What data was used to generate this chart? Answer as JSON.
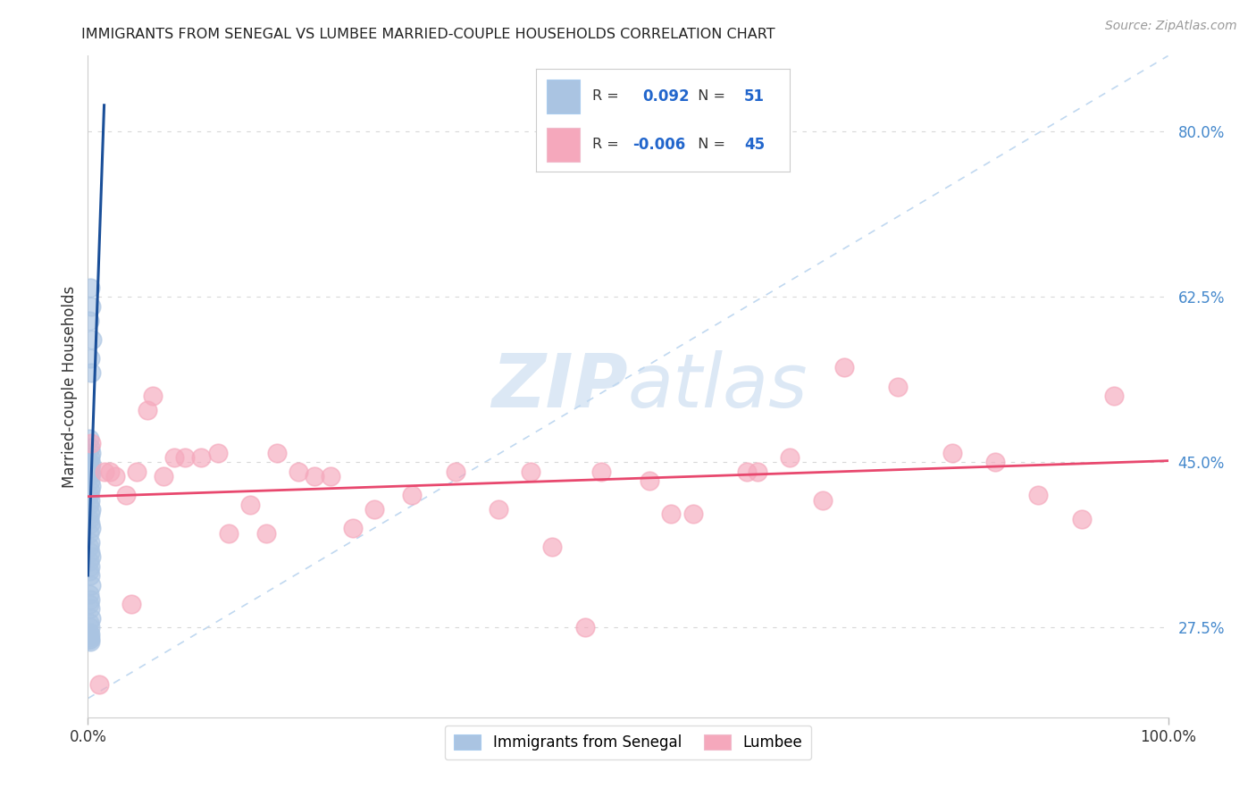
{
  "title": "IMMIGRANTS FROM SENEGAL VS LUMBEE MARRIED-COUPLE HOUSEHOLDS CORRELATION CHART",
  "source": "Source: ZipAtlas.com",
  "ylabel_label": "Married-couple Households",
  "legend1_label": "Immigrants from Senegal",
  "legend2_label": "Lumbee",
  "r1": 0.092,
  "n1": 51,
  "r2": -0.006,
  "n2": 45,
  "blue_color": "#aac4e2",
  "pink_color": "#f5a8bc",
  "blue_line_color": "#1a4f99",
  "pink_line_color": "#e8486e",
  "dashed_line_color": "#c0d8f0",
  "watermark_color": "#dce8f5",
  "xlim": [
    0.0,
    1.0
  ],
  "ylim": [
    0.18,
    0.88
  ],
  "yticks": [
    0.275,
    0.45,
    0.625,
    0.8
  ],
  "ytick_labels": [
    "27.5%",
    "45.0%",
    "62.5%",
    "80.0%"
  ],
  "blue_x": [
    0.002,
    0.003,
    0.001,
    0.004,
    0.002,
    0.003,
    0.001,
    0.002,
    0.003,
    0.002,
    0.001,
    0.003,
    0.002,
    0.001,
    0.002,
    0.003,
    0.001,
    0.002,
    0.003,
    0.002,
    0.001,
    0.002,
    0.001,
    0.003,
    0.002,
    0.001,
    0.002,
    0.003,
    0.001,
    0.002,
    0.001,
    0.002,
    0.003,
    0.001,
    0.002,
    0.001,
    0.002,
    0.003,
    0.001,
    0.002,
    0.001,
    0.002,
    0.003,
    0.001,
    0.002,
    0.001,
    0.002,
    0.001,
    0.002,
    0.001,
    0.002
  ],
  "blue_y": [
    0.635,
    0.615,
    0.6,
    0.58,
    0.56,
    0.545,
    0.475,
    0.465,
    0.46,
    0.455,
    0.45,
    0.448,
    0.445,
    0.442,
    0.44,
    0.438,
    0.435,
    0.43,
    0.425,
    0.42,
    0.415,
    0.41,
    0.405,
    0.4,
    0.395,
    0.39,
    0.385,
    0.38,
    0.375,
    0.365,
    0.36,
    0.355,
    0.35,
    0.345,
    0.34,
    0.335,
    0.33,
    0.32,
    0.31,
    0.305,
    0.3,
    0.295,
    0.285,
    0.28,
    0.275,
    0.27,
    0.268,
    0.265,
    0.263,
    0.262,
    0.26
  ],
  "pink_x": [
    0.003,
    0.06,
    0.09,
    0.12,
    0.15,
    0.175,
    0.21,
    0.245,
    0.3,
    0.34,
    0.38,
    0.43,
    0.475,
    0.52,
    0.56,
    0.61,
    0.65,
    0.7,
    0.75,
    0.8,
    0.84,
    0.88,
    0.92,
    0.95,
    0.055,
    0.08,
    0.105,
    0.165,
    0.225,
    0.265,
    0.035,
    0.13,
    0.195,
    0.41,
    0.46,
    0.54,
    0.62,
    0.68,
    0.04,
    0.015,
    0.02,
    0.025,
    0.045,
    0.07,
    0.01
  ],
  "pink_y": [
    0.47,
    0.52,
    0.455,
    0.46,
    0.405,
    0.46,
    0.435,
    0.38,
    0.415,
    0.44,
    0.4,
    0.36,
    0.44,
    0.43,
    0.395,
    0.44,
    0.455,
    0.55,
    0.53,
    0.46,
    0.45,
    0.415,
    0.39,
    0.52,
    0.505,
    0.455,
    0.455,
    0.375,
    0.435,
    0.4,
    0.415,
    0.375,
    0.44,
    0.44,
    0.275,
    0.395,
    0.44,
    0.41,
    0.3,
    0.44,
    0.44,
    0.435,
    0.44,
    0.435,
    0.215
  ]
}
